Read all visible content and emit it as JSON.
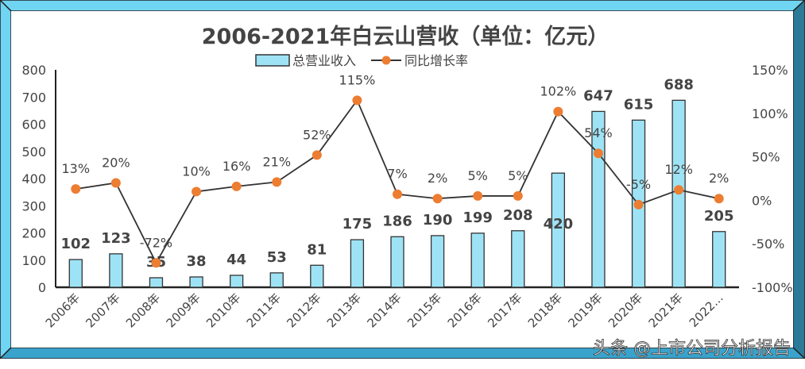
{
  "chart_data": {
    "type": "bar+line",
    "title": "2006-2021年白云山营收（单位：亿元）",
    "categories": [
      "2006年",
      "2007年",
      "2008年",
      "2009年",
      "2010年",
      "2011年",
      "2012年",
      "2013年",
      "2014年",
      "2015年",
      "2016年",
      "2017年",
      "2018年",
      "2019年",
      "2020年",
      "2021年",
      "2022..."
    ],
    "series": [
      {
        "name": "总营业收入",
        "type": "bar",
        "axis": "left",
        "color": "#9ee3f5",
        "values": [
          102,
          123,
          35,
          38,
          44,
          53,
          81,
          175,
          186,
          190,
          199,
          208,
          420,
          647,
          615,
          688,
          205
        ],
        "labels": [
          "102",
          "123",
          "35",
          "38",
          "44",
          "53",
          "81",
          "175",
          "186",
          "190",
          "199",
          "208",
          "420",
          "647",
          "615",
          "688",
          "205"
        ]
      },
      {
        "name": "同比增长率",
        "type": "line",
        "axis": "right",
        "color": "#ed7d31",
        "values": [
          13,
          20,
          -72,
          10,
          16,
          21,
          52,
          115,
          7,
          2,
          5,
          5,
          102,
          54,
          -5,
          12,
          2
        ],
        "labels": [
          "13%",
          "20%",
          "-72%",
          "10%",
          "16%",
          "21%",
          "52%",
          "115%",
          "7%",
          "2%",
          "5%",
          "5%",
          "102%",
          "54%",
          "-5%",
          "12%",
          "2%"
        ]
      }
    ],
    "y_left": {
      "range": [
        0,
        800
      ],
      "ticks": [
        "0",
        "100",
        "200",
        "300",
        "400",
        "500",
        "600",
        "700",
        "800"
      ]
    },
    "y_right": {
      "range": [
        -100,
        150
      ],
      "ticks": [
        "-100%",
        "-50%",
        "0%",
        "50%",
        "100%",
        "150%"
      ]
    },
    "legend": "top",
    "grid": false
  },
  "watermark": "头条 @上市公司分析报告",
  "colors": {
    "frame_top": "#6fd5f2",
    "frame_right": "#2b7b98",
    "frame_bottom": "#3aa3cc"
  }
}
